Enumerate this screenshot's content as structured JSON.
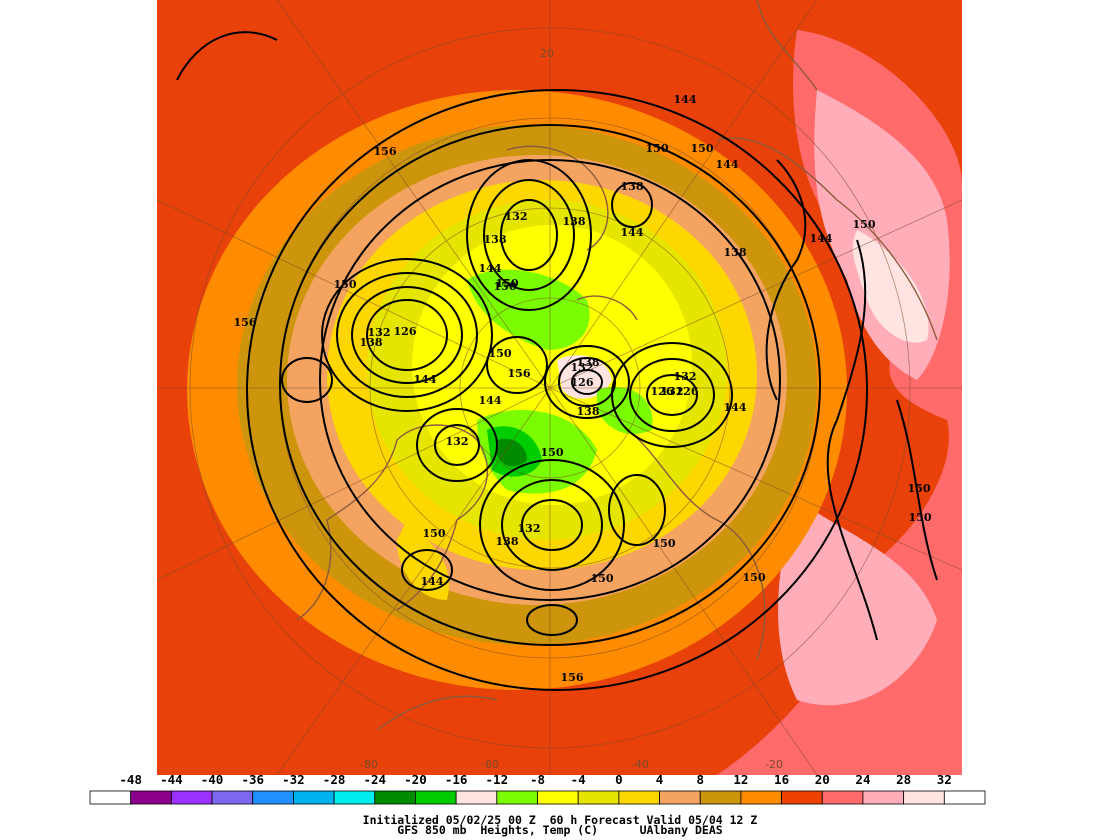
{
  "map": {
    "variable": "850 mb heights and temperature",
    "projection": "polar stereographic north",
    "grid_labels": [
      "20",
      "-80",
      "-60",
      "-40",
      "-20"
    ],
    "contour_labels": [
      "156",
      "144",
      "150",
      "150",
      "144",
      "150",
      "144",
      "138",
      "144",
      "138",
      "132",
      "138",
      "144",
      "150",
      "156",
      "150",
      "126",
      "132",
      "138",
      "144",
      "150",
      "156",
      "138",
      "132",
      "126",
      "138",
      "132",
      "126",
      "126",
      "132",
      "144",
      "138",
      "132",
      "150",
      "132",
      "138",
      "150",
      "150",
      "150",
      "144",
      "156",
      "150",
      "150",
      "150",
      "150",
      "144"
    ]
  },
  "colorbar": {
    "ticks": [
      "-48",
      "-44",
      "-40",
      "-36",
      "-32",
      "-28",
      "-24",
      "-20",
      "-16",
      "-12",
      "-8",
      "-4",
      "0",
      "4",
      "8",
      "12",
      "16",
      "20",
      "24",
      "28",
      "32"
    ],
    "colors": [
      "#ffffff",
      "#8b008b",
      "#9b30ff",
      "#7b68ee",
      "#1e90ff",
      "#00b2ee",
      "#00eeee",
      "#008b00",
      "#00cd00",
      "#ffe4e1",
      "#7cfc00",
      "#ffff00",
      "#e5e500",
      "#ffd700",
      "#f4a460",
      "#cd950c",
      "#ff8c00",
      "#ee4000",
      "#ff6a6a",
      "#ffaeb9",
      "#ffe4e1",
      "#ffffff"
    ]
  },
  "caption": {
    "line1": "Initialized 05/02/25 00 Z  60 h Forecast Valid 05/04 12 Z",
    "line2": "GFS 850 mb  Heights, Temp (C)      UAlbany DEAS"
  },
  "colors": {
    "background_fill": "#e8410a",
    "contour": "#000000",
    "coast": "#8b5a3c"
  }
}
